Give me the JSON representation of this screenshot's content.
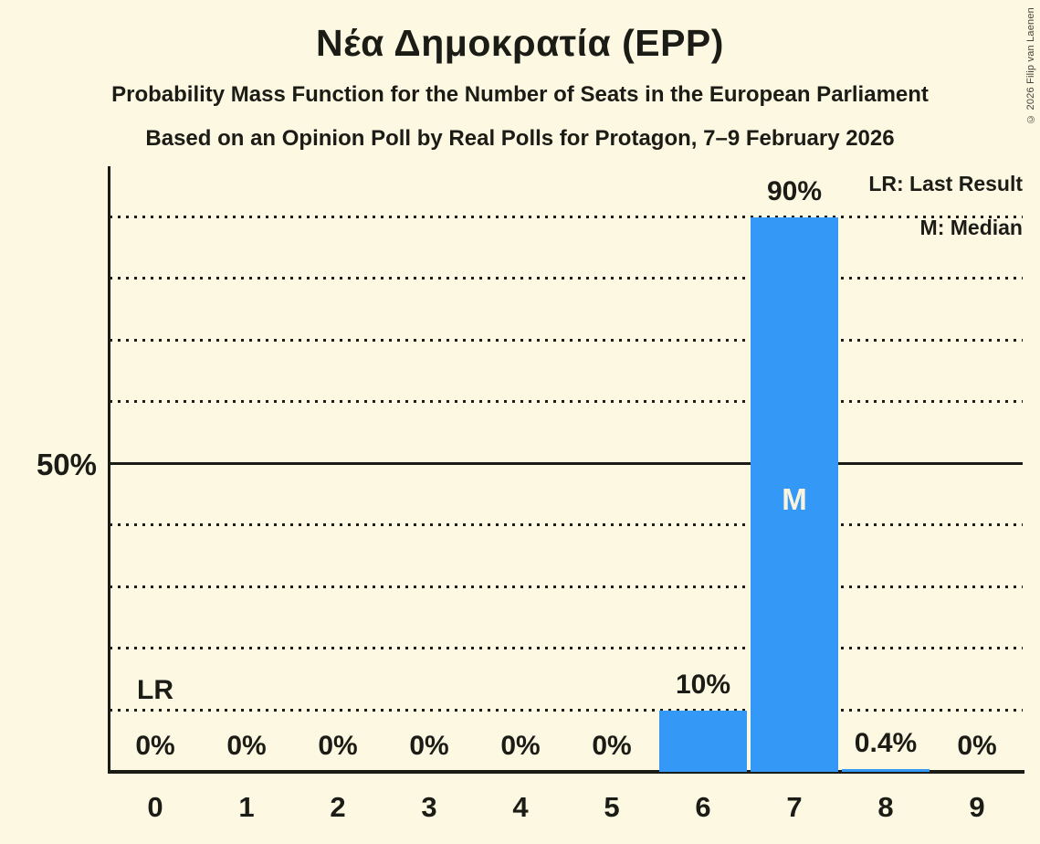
{
  "title": "Νέα Δημοκρατία (EPP)",
  "subtitle": "Probability Mass Function for the Number of Seats in the European Parliament",
  "subsubtitle": "Based on an Opinion Poll by Real Polls for Protagon, 7–9 February 2026",
  "copyright": "© 2026 Filip van Laenen",
  "legend": {
    "last_result": "LR: Last Result",
    "median": "M: Median"
  },
  "y_axis": {
    "tick_label": "50%"
  },
  "colors": {
    "background": "#fdf8e2",
    "bar": "#3498f7",
    "text": "#1c1c16",
    "median_letter": "#faf4dc"
  },
  "chart_data": {
    "type": "bar",
    "title": "Νέα Δημοκρατία (EPP)",
    "categories": [
      "0",
      "1",
      "2",
      "3",
      "4",
      "5",
      "6",
      "7",
      "8",
      "9"
    ],
    "values": [
      0,
      0,
      0,
      0,
      0,
      0,
      10,
      90,
      0.4,
      0
    ],
    "bar_labels": [
      "0%",
      "0%",
      "0%",
      "0%",
      "0%",
      "0%",
      "10%",
      "90%",
      "0.4%",
      "0%"
    ],
    "ylim": [
      0,
      100
    ],
    "y_tick_shown": 50,
    "gridlines_pct": [
      10,
      20,
      30,
      40,
      50,
      60,
      70,
      80,
      90
    ],
    "solid_gridline_pct": 50,
    "grid_style": "dotted horizontal",
    "legend_position": "top-right",
    "markers": {
      "lr_text": "LR",
      "lr_category_index": 0,
      "median_text": "M",
      "median_category_index": 7
    }
  }
}
